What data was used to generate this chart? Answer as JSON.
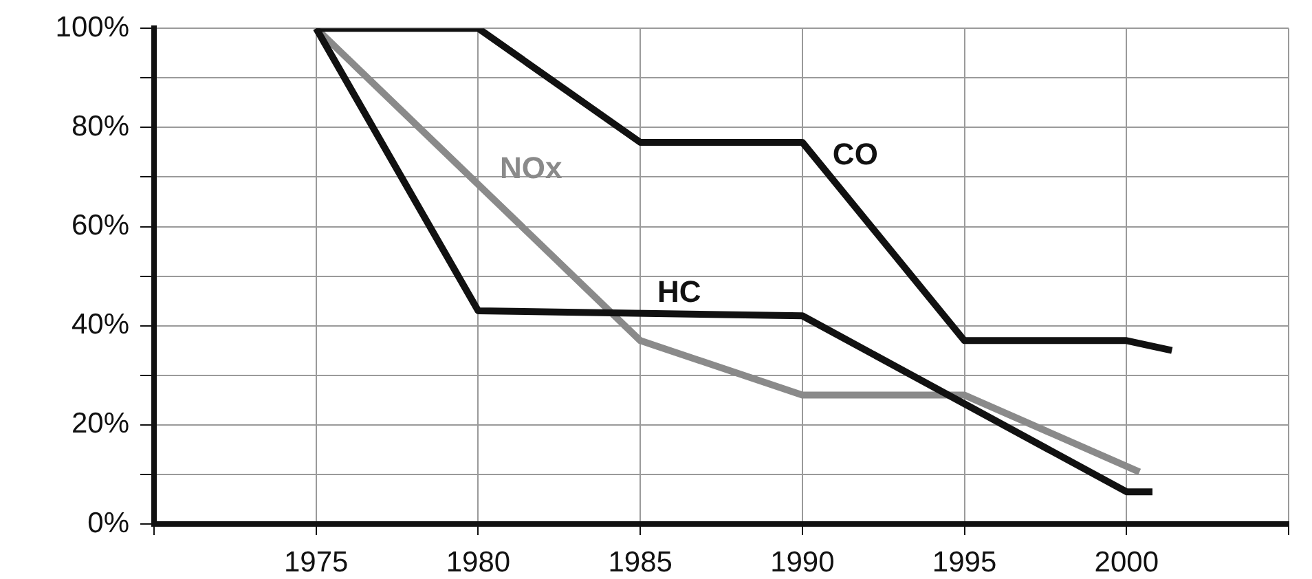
{
  "chart_data": {
    "type": "line",
    "xlim": [
      1970,
      2005
    ],
    "xticks": [
      {
        "value": 1970,
        "label": null
      },
      1975,
      1980,
      1985,
      1990,
      1995,
      2000,
      {
        "value": 2005,
        "label": null
      }
    ],
    "ylim": [
      0,
      100
    ],
    "yticks": [
      {
        "value": 0,
        "label": "0%"
      },
      {
        "value": 10,
        "label": null
      },
      {
        "value": 20,
        "label": "20%"
      },
      {
        "value": 30,
        "label": null
      },
      {
        "value": 40,
        "label": "40%"
      },
      {
        "value": 50,
        "label": null
      },
      {
        "value": 60,
        "label": "60%"
      },
      {
        "value": 70,
        "label": null
      },
      {
        "value": 80,
        "label": "80%"
      },
      {
        "value": 90,
        "label": null
      },
      {
        "value": 100,
        "label": "100%"
      }
    ],
    "grid": true,
    "legend": false,
    "marker": "none",
    "line_style": "solid",
    "series": [
      {
        "name": "CO",
        "color": "#111111",
        "x": [
          1975,
          1980,
          1985,
          1990,
          1995,
          2000,
          2001.4
        ],
        "values": [
          100,
          100,
          77,
          77,
          37,
          37,
          35
        ]
      },
      {
        "name": "HC",
        "color": "#111111",
        "x": [
          1975,
          1980,
          1990,
          2000,
          2000.8
        ],
        "values": [
          100,
          43,
          42,
          6.5,
          6.5
        ]
      },
      {
        "name": "NOx",
        "color": "#8a8a8a",
        "x": [
          1975,
          1985,
          1990,
          1995,
          2000.4
        ],
        "values": [
          100,
          37,
          26,
          26,
          10.5
        ]
      }
    ]
  }
}
